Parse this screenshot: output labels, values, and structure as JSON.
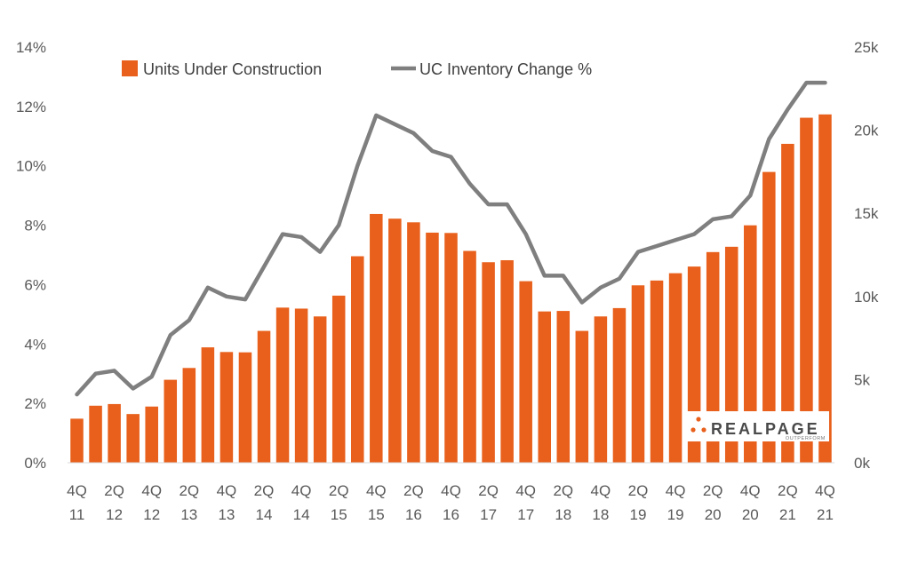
{
  "chart_data": {
    "type": "bar",
    "categories": [
      "4Q 11",
      "1Q 12",
      "2Q 12",
      "3Q 12",
      "4Q 12",
      "1Q 13",
      "2Q 13",
      "3Q 13",
      "4Q 13",
      "1Q 14",
      "2Q 14",
      "3Q 14",
      "4Q 14",
      "1Q 15",
      "2Q 15",
      "3Q 15",
      "4Q 15",
      "1Q 16",
      "2Q 16",
      "3Q 16",
      "4Q 16",
      "1Q 17",
      "2Q 17",
      "3Q 17",
      "4Q 17",
      "1Q 18",
      "2Q 18",
      "3Q 18",
      "4Q 18",
      "1Q 19",
      "2Q 19",
      "3Q 19",
      "4Q 19",
      "1Q 20",
      "2Q 20",
      "3Q 20",
      "4Q 20",
      "1Q 21",
      "2Q 21",
      "3Q 21",
      "4Q 21"
    ],
    "x_tick_labels": [
      {
        "index": 0,
        "top": "4Q",
        "bottom": "11"
      },
      {
        "index": 2,
        "top": "2Q",
        "bottom": "12"
      },
      {
        "index": 4,
        "top": "4Q",
        "bottom": "12"
      },
      {
        "index": 6,
        "top": "2Q",
        "bottom": "13"
      },
      {
        "index": 8,
        "top": "4Q",
        "bottom": "13"
      },
      {
        "index": 10,
        "top": "2Q",
        "bottom": "14"
      },
      {
        "index": 12,
        "top": "4Q",
        "bottom": "14"
      },
      {
        "index": 14,
        "top": "2Q",
        "bottom": "15"
      },
      {
        "index": 16,
        "top": "4Q",
        "bottom": "15"
      },
      {
        "index": 18,
        "top": "2Q",
        "bottom": "16"
      },
      {
        "index": 20,
        "top": "4Q",
        "bottom": "16"
      },
      {
        "index": 22,
        "top": "2Q",
        "bottom": "17"
      },
      {
        "index": 24,
        "top": "4Q",
        "bottom": "17"
      },
      {
        "index": 26,
        "top": "2Q",
        "bottom": "18"
      },
      {
        "index": 28,
        "top": "4Q",
        "bottom": "18"
      },
      {
        "index": 30,
        "top": "2Q",
        "bottom": "19"
      },
      {
        "index": 32,
        "top": "4Q",
        "bottom": "19"
      },
      {
        "index": 34,
        "top": "2Q",
        "bottom": "20"
      },
      {
        "index": 36,
        "top": "4Q",
        "bottom": "20"
      },
      {
        "index": 38,
        "top": "2Q",
        "bottom": "21"
      },
      {
        "index": 40,
        "top": "4Q",
        "bottom": "21"
      }
    ],
    "series": [
      {
        "name": "Units Under Construction",
        "type": "bar",
        "axis": "right",
        "color": "#E8601C",
        "values": [
          2650,
          3430,
          3530,
          2930,
          3380,
          4990,
          5700,
          6940,
          6660,
          6640,
          7930,
          9330,
          9270,
          8800,
          10050,
          12420,
          14960,
          14680,
          14460,
          13840,
          13820,
          12740,
          12060,
          12180,
          10920,
          9100,
          9130,
          7930,
          8800,
          9300,
          10670,
          10960,
          11400,
          11800,
          12670,
          12990,
          14280,
          17490,
          19180,
          20750,
          20950
        ]
      },
      {
        "name": "UC Inventory Change %",
        "type": "line",
        "axis": "left",
        "color": "#7F7F7F",
        "values": [
          2.3,
          3.0,
          3.1,
          2.5,
          2.9,
          4.3,
          4.8,
          5.9,
          5.6,
          5.5,
          6.6,
          7.7,
          7.6,
          7.1,
          8.0,
          10.0,
          11.7,
          11.4,
          11.1,
          10.5,
          10.3,
          9.4,
          8.7,
          8.7,
          7.7,
          6.3,
          6.3,
          5.4,
          5.9,
          6.2,
          7.1,
          7.3,
          7.5,
          7.7,
          8.2,
          8.3,
          9.0,
          10.9,
          11.9,
          12.8,
          12.8
        ]
      }
    ],
    "y_left": {
      "ticks": [
        "0%",
        "2%",
        "4%",
        "6%",
        "8%",
        "10%",
        "12%",
        "14%"
      ],
      "min": 0,
      "max": 14
    },
    "y_right": {
      "ticks": [
        "0k",
        "5k",
        "10k",
        "15k",
        "20k",
        "25k"
      ],
      "min": 0,
      "max": 25000
    },
    "legend_placement": "top-left",
    "grid": false
  },
  "logo": {
    "name": "RealPage",
    "text": "REALPAGE",
    "tagline": "OUTPERFORM",
    "accent": "#E8601C"
  }
}
